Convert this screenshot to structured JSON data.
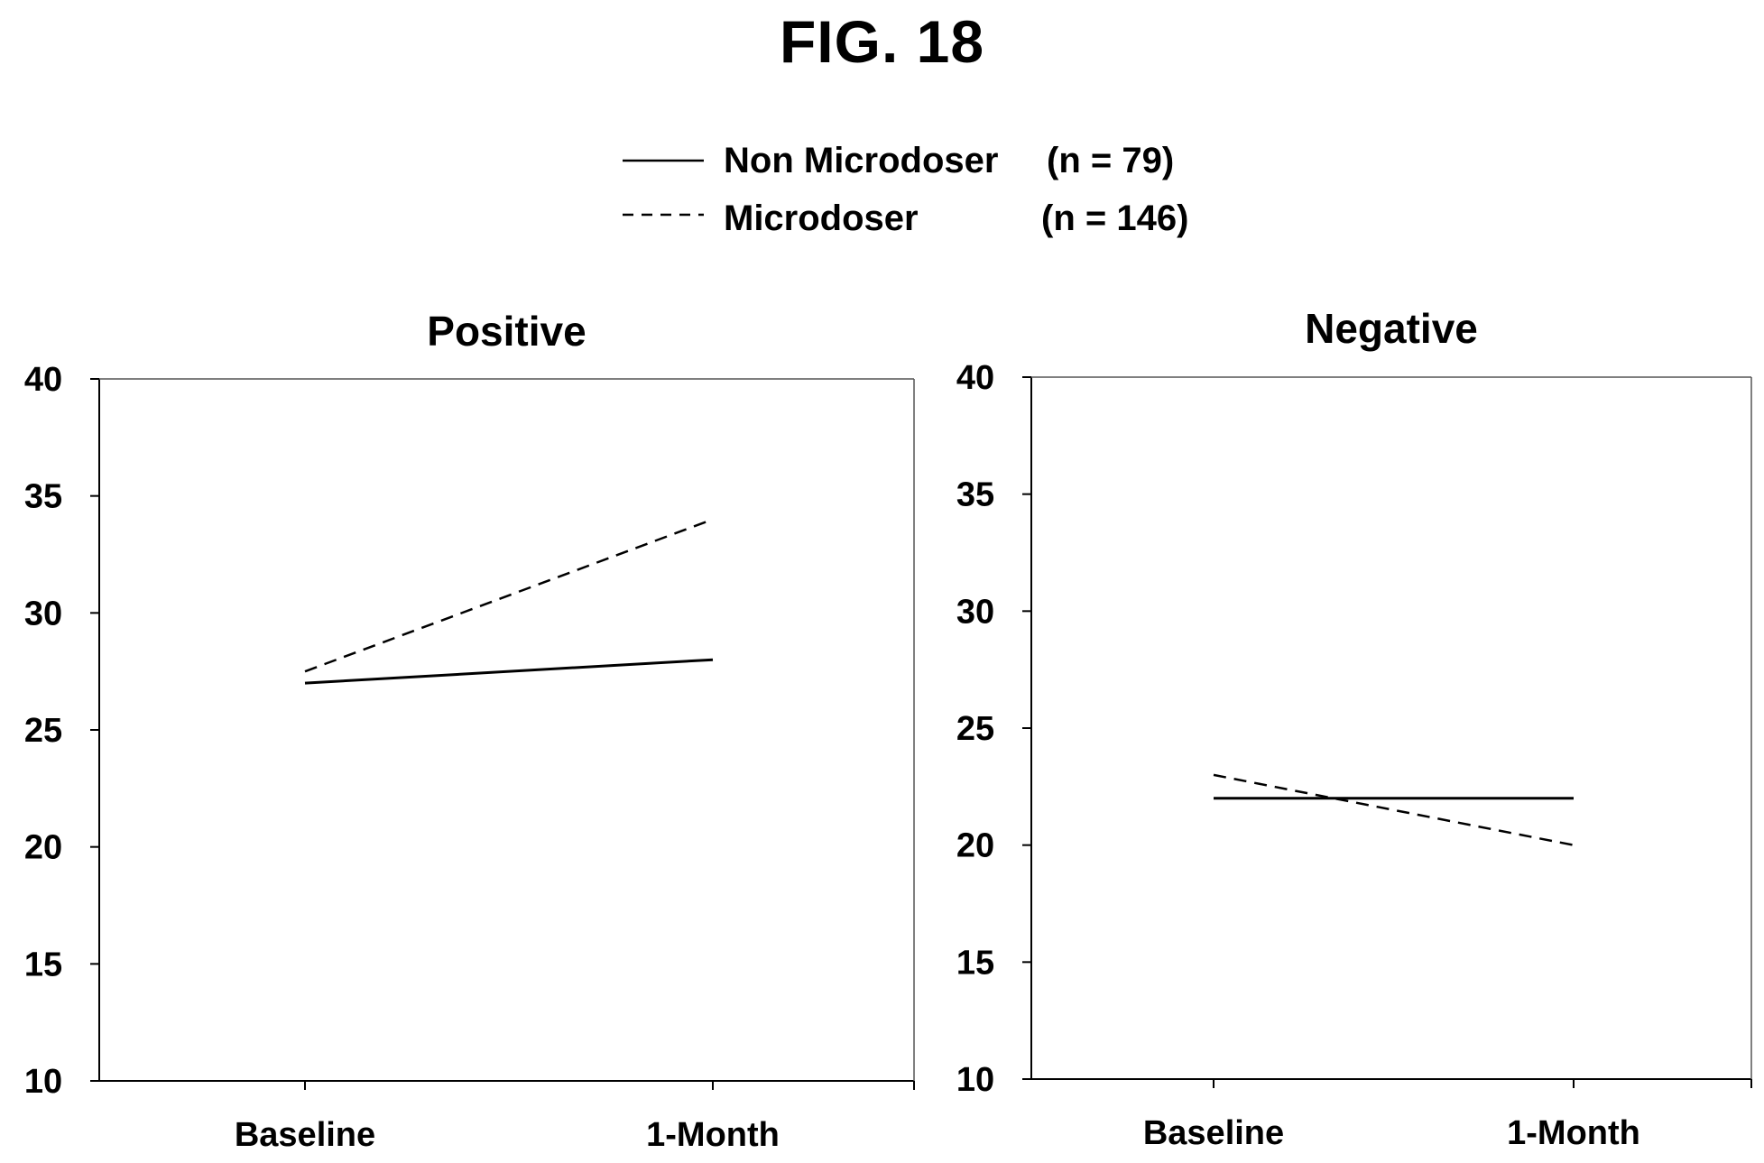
{
  "figure": {
    "title": "FIG. 18"
  },
  "legend": {
    "entries": [
      {
        "name": "Non Microdoser",
        "n": "(n = 79)",
        "style": "solid"
      },
      {
        "name": "Microdoser",
        "n": "(n = 146)",
        "style": "dashed"
      }
    ]
  },
  "chart_data": [
    {
      "type": "line",
      "title": "Positive",
      "categories": [
        "Baseline",
        "1-Month"
      ],
      "series": [
        {
          "name": "Non Microdoser",
          "style": "solid",
          "values": [
            27,
            28
          ]
        },
        {
          "name": "Microdoser",
          "style": "dashed",
          "values": [
            27.5,
            34
          ]
        }
      ],
      "ylim": [
        10,
        40
      ],
      "yticks": [
        "10",
        "15",
        "20",
        "25",
        "30",
        "35",
        "40"
      ],
      "grid": false
    },
    {
      "type": "line",
      "title": "Negative",
      "categories": [
        "Baseline",
        "1-Month"
      ],
      "series": [
        {
          "name": "Non Microdoser",
          "style": "solid",
          "values": [
            22,
            22
          ]
        },
        {
          "name": "Microdoser",
          "style": "dashed",
          "values": [
            23,
            20
          ]
        }
      ],
      "ylim": [
        10,
        40
      ],
      "yticks": [
        "10",
        "15",
        "20",
        "25",
        "30",
        "35",
        "40"
      ],
      "grid": false
    }
  ]
}
